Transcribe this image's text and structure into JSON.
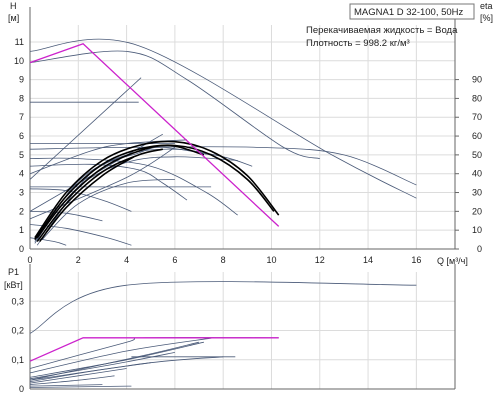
{
  "chart_data": {
    "type": "line",
    "title": "MAGNA1 D 32-100, 50Hz",
    "annotations": [
      "Перекачиваемая жидкость = Вода",
      "Плотность = 998.2 кг/м³"
    ],
    "colors": {
      "curve": "#4a5a78",
      "highlight": "#cc22cc",
      "duty": "#000000",
      "grid": "#dcdcdc",
      "axis": "#666666"
    },
    "top": {
      "xlabel": "Q [м³/ч]",
      "ylabel": "H",
      "yunit": "[м]",
      "y2label": "eta",
      "y2unit": "[%]",
      "xlim": [
        0,
        17.6
      ],
      "ylim": [
        0,
        11.9
      ],
      "y2lim": [
        0,
        119
      ],
      "xticks": [
        "0",
        "2",
        "4",
        "6",
        "8",
        "10",
        "12",
        "14",
        "16"
      ],
      "yticks": [
        "0",
        "1",
        "2",
        "3",
        "4",
        "5",
        "6",
        "7",
        "8",
        "9",
        "10",
        "11"
      ],
      "y2ticks": [
        "0",
        "10",
        "20",
        "30",
        "40",
        "50",
        "60",
        "70",
        "80",
        "90"
      ],
      "series": [
        {
          "role": "curve",
          "points": [
            [
              0,
              10.5
            ],
            [
              4.5,
              10.8
            ],
            [
              12.5,
              5.0
            ],
            [
              16,
              2.7
            ]
          ]
        },
        {
          "role": "curve",
          "points": [
            [
              0,
              9.9
            ],
            [
              4.0,
              10.5
            ],
            [
              6.5,
              9.0
            ],
            [
              10.5,
              5.4
            ],
            [
              12.0,
              4.8
            ]
          ]
        },
        {
          "role": "curve",
          "points": [
            [
              0,
              5.3
            ],
            [
              4,
              5.4
            ],
            [
              9.5,
              5.4
            ],
            [
              13,
              5.0
            ],
            [
              16,
              3.4
            ]
          ]
        },
        {
          "role": "curve",
          "points": [
            [
              0,
              4.8
            ],
            [
              2,
              4.8
            ],
            [
              5,
              4.4
            ],
            [
              7.3,
              3.0
            ],
            [
              8.6,
              1.8
            ]
          ]
        },
        {
          "role": "curve",
          "points": [
            [
              0,
              4.4
            ],
            [
              2.5,
              4.5
            ],
            [
              4.5,
              4.2
            ],
            [
              5.5,
              3.5
            ],
            [
              6.5,
              2.6
            ]
          ]
        },
        {
          "role": "curve",
          "points": [
            [
              0,
              3.2
            ],
            [
              1.5,
              3.1
            ],
            [
              3.0,
              2.6
            ],
            [
              4.2,
              2.0
            ]
          ]
        },
        {
          "role": "curve",
          "points": [
            [
              0,
              2.0
            ],
            [
              1.5,
              1.9
            ],
            [
              3.0,
              1.5
            ]
          ]
        },
        {
          "role": "curve",
          "points": [
            [
              0,
              1.3
            ],
            [
              1.5,
              1.1
            ],
            [
              3.2,
              0.6
            ],
            [
              4.2,
              0.2
            ]
          ]
        },
        {
          "role": "curve",
          "points": [
            [
              0,
              0.6
            ],
            [
              1.0,
              0.4
            ],
            [
              1.5,
              0.2
            ]
          ]
        },
        {
          "role": "curve",
          "points": [
            [
              0,
              7.8
            ],
            [
              4.5,
              7.8
            ]
          ]
        },
        {
          "role": "curve",
          "points": [
            [
              0,
              5.6
            ],
            [
              6.0,
              5.6
            ]
          ]
        },
        {
          "role": "curve",
          "points": [
            [
              0,
              3.3
            ],
            [
              7.5,
              3.3
            ]
          ]
        },
        {
          "role": "curve",
          "points": [
            [
              0,
              3.7
            ],
            [
              4.6,
              9.1
            ]
          ]
        },
        {
          "role": "curve",
          "points": [
            [
              0,
              2.0
            ],
            [
              5.5,
              6.1
            ]
          ]
        },
        {
          "role": "curve",
          "points": [
            [
              0,
              1.6
            ],
            [
              4.0,
              3.8
            ],
            [
              6.0,
              5.4
            ]
          ]
        },
        {
          "role": "curve",
          "points": [
            [
              0,
              4.0
            ],
            [
              2.5,
              5.2
            ],
            [
              4.0,
              5.6
            ],
            [
              6.5,
              5.8
            ]
          ]
        },
        {
          "role": "curve",
          "points": [
            [
              0.2,
              0.4
            ],
            [
              2.0,
              3.3
            ],
            [
              4.0,
              4.6
            ],
            [
              6.0,
              4.9
            ],
            [
              8.6,
              4.7
            ]
          ]
        },
        {
          "role": "curve",
          "points": [
            [
              0.2,
              0.3
            ],
            [
              2.0,
              3.6
            ],
            [
              4.0,
              5.0
            ],
            [
              6.0,
              5.3
            ],
            [
              8.0,
              4.9
            ],
            [
              9.2,
              4.4
            ]
          ]
        },
        {
          "role": "curve",
          "points": [
            [
              0.3,
              0.2
            ],
            [
              2.5,
              4.0
            ],
            [
              4.5,
              5.1
            ],
            [
              5.5,
              5.4
            ],
            [
              7.5,
              5.0
            ]
          ]
        },
        {
          "role": "curve",
          "points": [
            [
              0.5,
              0.5
            ],
            [
              2.0,
              2.4
            ],
            [
              4.0,
              3.5
            ],
            [
              6.0,
              3.7
            ]
          ]
        },
        {
          "role": "highlight",
          "points": [
            [
              0,
              9.9
            ],
            [
              2.2,
              10.9
            ],
            [
              10.3,
              1.2
            ]
          ]
        },
        {
          "role": "duty",
          "points": [
            [
              0.2,
              0.6
            ],
            [
              1.5,
              3.0
            ],
            [
              3.0,
              4.7
            ],
            [
              4.5,
              5.5
            ],
            [
              6.0,
              5.7
            ],
            [
              7.5,
              5.2
            ],
            [
              9.0,
              3.9
            ],
            [
              10.3,
              1.8
            ]
          ]
        },
        {
          "role": "duty",
          "points": [
            [
              0.2,
              0.5
            ],
            [
              1.5,
              2.8
            ],
            [
              3.0,
              4.5
            ],
            [
              4.5,
              5.3
            ],
            [
              6.0,
              5.5
            ],
            [
              7.5,
              5.0
            ],
            [
              9.0,
              3.7
            ],
            [
              10.1,
              2.0
            ]
          ]
        },
        {
          "role": "duty",
          "points": [
            [
              0.3,
              0.6
            ],
            [
              1.5,
              2.6
            ],
            [
              3.0,
              4.3
            ],
            [
              4.5,
              5.2
            ],
            [
              5.8,
              5.5
            ],
            [
              7.2,
              5.0
            ]
          ]
        },
        {
          "role": "duty",
          "points": [
            [
              0.3,
              0.4
            ],
            [
              1.5,
              2.4
            ],
            [
              3.0,
              4.1
            ],
            [
              4.5,
              5.0
            ],
            [
              5.5,
              5.3
            ]
          ]
        },
        {
          "role": "duty",
          "points": [
            [
              0.4,
              0.4
            ],
            [
              1.5,
              2.2
            ],
            [
              3.0,
              3.9
            ],
            [
              4.3,
              4.9
            ]
          ]
        }
      ]
    },
    "bottom": {
      "ylabel": "P1",
      "yunit": "[кВт]",
      "xlim": [
        0,
        17.6
      ],
      "ylim": [
        0,
        0.4
      ],
      "yticks": [
        "0",
        "0,1",
        "0,2",
        "0,3"
      ],
      "series": [
        {
          "role": "curve",
          "points": [
            [
              0,
              0.19
            ],
            [
              4.0,
              0.355
            ],
            [
              16,
              0.355
            ]
          ]
        },
        {
          "role": "highlight",
          "points": [
            [
              0,
              0.095
            ],
            [
              2.2,
              0.175
            ],
            [
              10.3,
              0.175
            ]
          ]
        },
        {
          "role": "curve",
          "points": [
            [
              0,
              0.07
            ],
            [
              4.0,
              0.16
            ],
            [
              4.8,
              0.175
            ],
            [
              10.3,
              0.175
            ]
          ]
        },
        {
          "role": "curve",
          "points": [
            [
              0,
              0.055
            ],
            [
              4.0,
              0.13
            ],
            [
              7.6,
              0.175
            ]
          ]
        },
        {
          "role": "curve",
          "points": [
            [
              0,
              0.04
            ],
            [
              4.0,
              0.1
            ],
            [
              7.2,
              0.16
            ]
          ]
        },
        {
          "role": "curve",
          "points": [
            [
              0,
              0.03
            ],
            [
              5.0,
              0.09
            ],
            [
              8.0,
              0.11
            ]
          ]
        },
        {
          "role": "curve",
          "points": [
            [
              0,
              0.035
            ],
            [
              3.5,
              0.085
            ],
            [
              6.0,
              0.125
            ]
          ]
        },
        {
          "role": "curve",
          "points": [
            [
              0,
              0.025
            ],
            [
              2.5,
              0.06
            ],
            [
              5.0,
              0.09
            ]
          ]
        },
        {
          "role": "curve",
          "points": [
            [
              0,
              0.02
            ],
            [
              2.0,
              0.045
            ],
            [
              4.0,
              0.07
            ]
          ]
        },
        {
          "role": "curve",
          "points": [
            [
              0,
              0.015
            ],
            [
              2.0,
              0.03
            ],
            [
              3.5,
              0.045
            ]
          ]
        },
        {
          "role": "curve",
          "points": [
            [
              0,
              0.03
            ],
            [
              2.5,
              0.075
            ],
            [
              5.0,
              0.12
            ],
            [
              7.0,
              0.16
            ]
          ]
        },
        {
          "role": "curve",
          "points": [
            [
              4.2,
              0.11
            ],
            [
              8.5,
              0.11
            ]
          ]
        },
        {
          "role": "curve",
          "points": [
            [
              0,
              0.01
            ],
            [
              3.0,
              0.015
            ]
          ]
        },
        {
          "role": "curve",
          "points": [
            [
              0,
              0.005
            ],
            [
              4.2,
              0.01
            ]
          ]
        }
      ]
    }
  }
}
